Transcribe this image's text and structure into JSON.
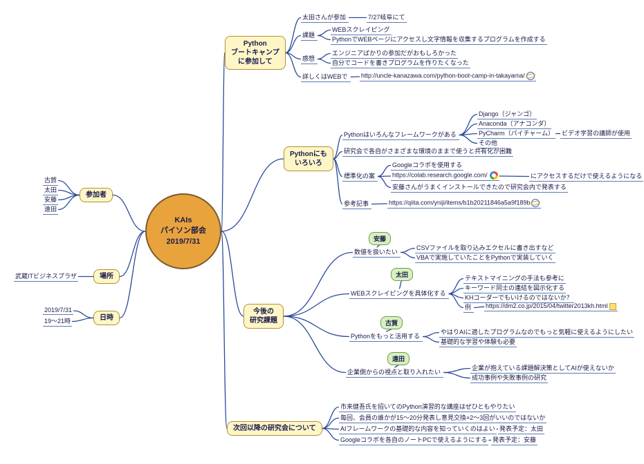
{
  "color": {
    "line": "#2a4a9a",
    "node_fill": "#fff6c8",
    "node_border": "#b09030",
    "center_fill": "#e8a33d",
    "green_fill": "#d8f0c0"
  },
  "center": {
    "l1": "KAIs",
    "l2": "パイソン部会",
    "l3": "2019/7/31"
  },
  "participants": {
    "label": "参加者",
    "items": [
      "古賀",
      "太田",
      "安藤",
      "遠田"
    ]
  },
  "place": {
    "label": "場所",
    "value": "武蔵ITビジネスプラザ"
  },
  "datetime": {
    "label": "日時",
    "date": "2019/7/31",
    "time": "19～21時"
  },
  "bootcamp": {
    "label_l1": "Python",
    "label_l2": "ブートキャンプ",
    "label_l3": "に参加して",
    "p1": {
      "label": "太田さんが参加",
      "sub": "7/27岐阜にて"
    },
    "p2": {
      "label": "課題",
      "s1": "WEBスクレイピング",
      "s2": "PythonでWEBページにアクセスし文字情報を収集するプログラムを作成する"
    },
    "p3": {
      "label": "感想",
      "s1": "エンジニアばかりの参加だがおもしろかった",
      "s2": "自分でコードを書きプログラムを作りたくなった"
    },
    "p4": {
      "label": "詳しくはWEBで",
      "url": "http://uncle-kanazawa.com/python-boot-camp-in-takayama/"
    }
  },
  "various": {
    "label_l1": "Pythonにも",
    "label_l2": "いろいろ",
    "fw": {
      "label": "Pythonはいろんなフレームワークがある",
      "f1": "Django（ジャンゴ）",
      "f2": "Anaconda（アナコンダ）",
      "f3": "PyCharm（パイチャーム）",
      "f3note": "ビデオ学習の講師が使用",
      "f4": "その他"
    },
    "diff": "研究会で各自がさまざまな環境のままで使うと共有化が困難",
    "std": {
      "label": "標準化の案",
      "s1": "Googleコラボを使用する",
      "s2": "https://colab.research.google.com/",
      "s2note": "にアクセスするだけで使えるようになる",
      "s3": "安藤さんがうまくインストールできたので研究会内で発表する"
    },
    "ref": {
      "label": "参考記事",
      "url": "https://qiita.com/yniji/items/b1b20211846a5a9f189b"
    }
  },
  "future": {
    "label_l1": "今後の",
    "label_l2": "研究課題",
    "ando": {
      "name": "安藤",
      "label": "数値を扱いたい",
      "s1": "CSVファイルを取り込みエクセルに書き出すなど",
      "s2": "VBAで実施していたことをPythonで実装していく"
    },
    "ota": {
      "name": "太田",
      "label": "WEBスクレイピングを具体化する",
      "s1": "テキストマイニングの手法も参考に",
      "s2": "キーワード同士の連結を図示化する",
      "s3": "KHコーダーでもいけるのではないか？",
      "ex": "例",
      "url": "https://dm2.co.jp/2015/04/twitter2013kh.html"
    },
    "koga": {
      "name": "古賀",
      "label": "Pythonをもっと活用する",
      "s1": "やはりAIに適したプログラムなのでもっと気軽に使えるようにしたい",
      "s2": "基礎的な学習や体験も必要"
    },
    "toda": {
      "name": "遠田",
      "label": "企業側からの視点と取り入れたい",
      "s1": "企業が抱えている課題解決策としてAIが使えないか",
      "s2": "成功事例や失敗事例の研究"
    }
  },
  "next": {
    "label": "次回以降の研究会について",
    "s1": "市来健吾氏を招いてのPython演習的な講座はぜひともやりたい",
    "s2": "毎回、会員の誰かが15～20分発表し意見交換×2～3回がいいのではないか",
    "s3": "AIフレームワークの基礎的な内容を知っていくのはよい",
    "s3n": "発表予定：太田",
    "s4": "Googleコラボを各自のノートPCで使えるようにする",
    "s4n": "発表予定：安藤"
  }
}
